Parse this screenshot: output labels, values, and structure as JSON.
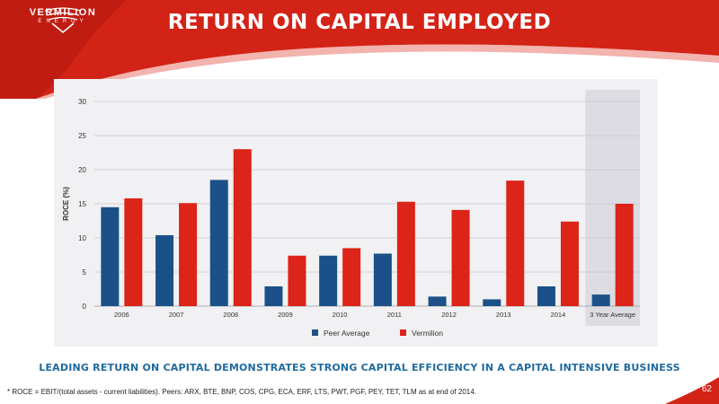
{
  "company": {
    "name_line1": "VERMILION",
    "name_line2": "ENERGY"
  },
  "slide": {
    "title": "RETURN ON CAPITAL EMPLOYED",
    "tagline": "LEADING RETURN ON CAPITAL DEMONSTRATES STRONG CAPITAL EFFICIENCY IN A CAPITAL INTENSIVE BUSINESS",
    "footnote": "* ROCE = EBIT/(total assets - current liabilities).  Peers: ARX, BTE, BNP, COS, CPG, ECA, ERF, LTS, PWT, PGF, PEY, TET, TLM as at end of 2014.",
    "page_number": "62"
  },
  "colors": {
    "brand_red": "#d32316",
    "peer_blue": "#1b5188",
    "vermilion_red": "#dc2418",
    "highlight": "#dcdce2"
  },
  "chart_data": {
    "type": "bar",
    "categories": [
      "2006",
      "2007",
      "2008",
      "2009",
      "2010",
      "2011",
      "2012",
      "2013",
      "2014",
      "3 Year Average"
    ],
    "series": [
      {
        "name": "Peer Average",
        "values": [
          14.5,
          10.4,
          18.5,
          2.9,
          7.4,
          7.7,
          1.4,
          1.0,
          2.9,
          1.7
        ]
      },
      {
        "name": "Vermilion",
        "values": [
          15.8,
          15.1,
          23.0,
          7.4,
          8.5,
          15.3,
          14.1,
          18.4,
          12.4,
          15.0
        ]
      }
    ],
    "ylabel": "ROCE (%)",
    "ylim": [
      0,
      30
    ],
    "yticks": [
      0,
      5,
      10,
      15,
      20,
      25,
      30
    ],
    "grid": true,
    "legend": "bottom",
    "highlighted_category": "3 Year Average"
  }
}
